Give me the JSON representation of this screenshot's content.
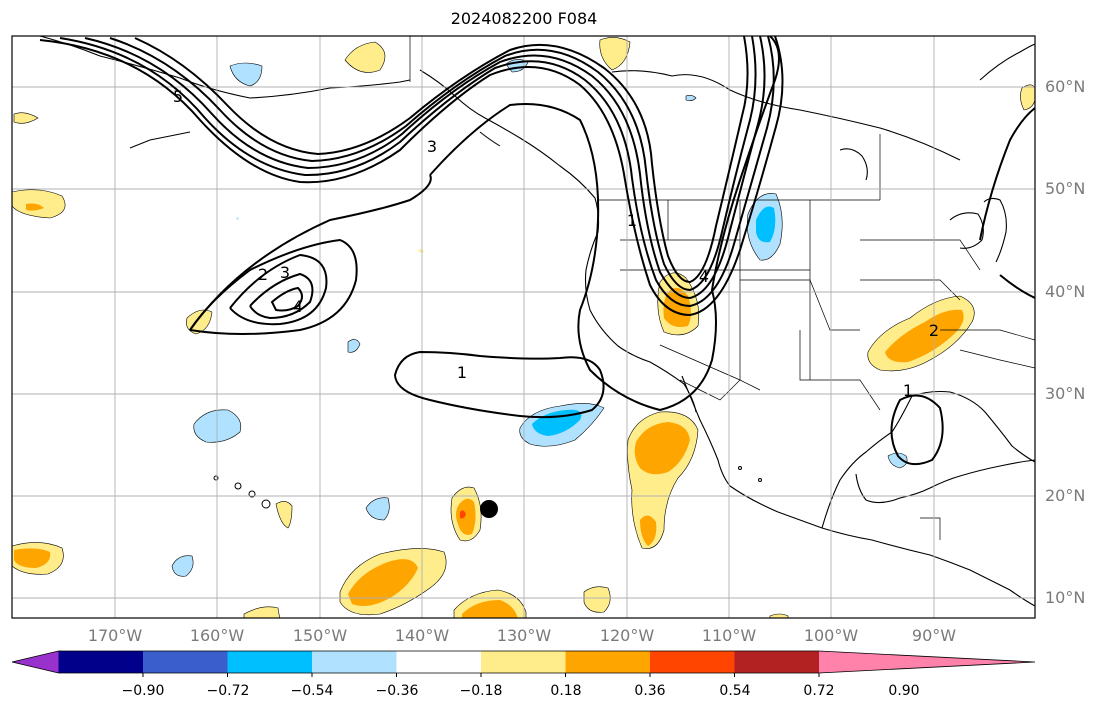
{
  "title": "2024082200 F084",
  "lat_labels": [
    "60°N",
    "50°N",
    "40°N",
    "30°N",
    "20°N",
    "10°N"
  ],
  "lon_labels": [
    "170°W",
    "160°W",
    "150°W",
    "140°W",
    "130°W",
    "120°W",
    "110°W",
    "100°W",
    "90°W"
  ],
  "colorbar": {
    "colors": [
      "#9932cc",
      "#00008b",
      "#3a5fcd",
      "#00bfff",
      "#b0e2ff",
      "#ffffff",
      "#ffec8b",
      "#ffa500",
      "#ff4500",
      "#b22222",
      "#ff82ab"
    ],
    "ticks": [
      "−0.90",
      "−0.72",
      "−0.54",
      "−0.36",
      "−0.18",
      "0.18",
      "0.36",
      "0.54",
      "0.72",
      "0.90"
    ]
  },
  "contour_labels": [
    "5",
    "3",
    "2",
    "3",
    "4",
    "1",
    "1",
    "4",
    "2",
    "1"
  ],
  "colors": {
    "pos_light": "#ffec8b",
    "pos_mid": "#ffa500",
    "pos_dark": "#ff4500",
    "neg_light": "#b0e2ff",
    "neg_mid": "#00bfff",
    "grid": "#b0b0b0"
  }
}
